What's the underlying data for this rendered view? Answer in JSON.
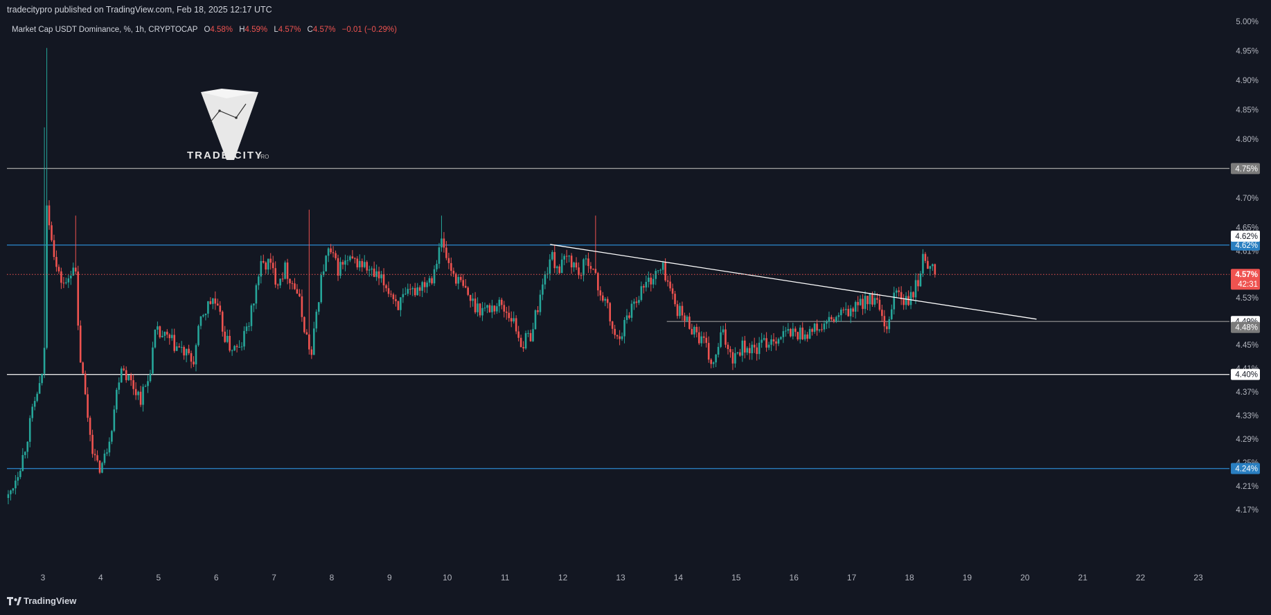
{
  "header": {
    "published_by": "tradecitypro published on TradingView.com, Feb 18, 2025 12:17 UTC"
  },
  "legend": {
    "symbol": "Market Cap USDT Dominance, %, 1h, CRYPTOCAP",
    "o_label": "O",
    "o_value": "4.58%",
    "h_label": "H",
    "h_value": "4.59%",
    "l_label": "L",
    "l_value": "4.57%",
    "c_label": "C",
    "c_value": "4.57%",
    "change": "−0.01 (−0.29%)"
  },
  "watermark": {
    "brand": "TRADE CITY",
    "suffix": "PRO"
  },
  "footer": {
    "brand": "TradingView"
  },
  "colors": {
    "background": "#131722",
    "up": "#26a69a",
    "down": "#ef5350",
    "blue_level": "#2a7fc1",
    "white_level": "#e6e6e6",
    "gray_level": "#9a9a9a",
    "price_line": "#ef5350",
    "text": "#d1d4dc",
    "axis_text": "#b2b5be"
  },
  "chart_data": {
    "type": "candlestick",
    "title": "Market Cap USDT Dominance, %, 1h, CRYPTOCAP",
    "y_unit": "%",
    "ylim": [
      4.14,
      5.0
    ],
    "xlim": [
      2.4,
      23.6
    ],
    "x_ticks": [
      "3",
      "4",
      "5",
      "6",
      "7",
      "8",
      "9",
      "10",
      "11",
      "12",
      "13",
      "14",
      "15",
      "16",
      "17",
      "18",
      "19",
      "20",
      "21",
      "22",
      "23"
    ],
    "y_ticks": [
      "5.00%",
      "4.95%",
      "4.90%",
      "4.85%",
      "4.80%",
      "4.75%",
      "4.70%",
      "4.65%",
      "4.61%",
      "4.57%",
      "4.53%",
      "4.49%",
      "4.45%",
      "4.41%",
      "4.37%",
      "4.33%",
      "4.29%",
      "4.25%",
      "4.21%",
      "4.17%"
    ],
    "levels": [
      {
        "value": 4.75,
        "label": "4.75%",
        "style": "gray"
      },
      {
        "value": 4.62,
        "label": "4.62%",
        "style": "blue"
      },
      {
        "value": 4.4,
        "label": "4.40%",
        "style": "white"
      },
      {
        "value": 4.24,
        "label": "4.24%",
        "style": "blue"
      }
    ],
    "segment_level": {
      "value": 4.49,
      "label": "4.49%",
      "x_start": 13.8
    },
    "extra_tags": [
      {
        "value": 4.635,
        "label": "4.62%",
        "style": "white"
      },
      {
        "value": 4.48,
        "label": "4.48%",
        "style": "gray"
      }
    ],
    "trendline": {
      "x1": 11.78,
      "y1": 4.621,
      "x2": 20.2,
      "y2": 4.494
    },
    "last_price": {
      "value": 4.57,
      "label": "4.57%",
      "countdown": "42:31"
    },
    "anchors": [
      [
        2.4,
        4.19
      ],
      [
        2.65,
        4.26
      ],
      [
        2.9,
        4.37
      ],
      [
        3.02,
        4.4
      ],
      [
        3.05,
        4.69
      ],
      [
        3.12,
        4.66
      ],
      [
        3.25,
        4.57
      ],
      [
        3.4,
        4.55
      ],
      [
        3.55,
        4.6
      ],
      [
        3.62,
        4.45
      ],
      [
        3.8,
        4.31
      ],
      [
        3.93,
        4.24
      ],
      [
        4.05,
        4.25
      ],
      [
        4.2,
        4.32
      ],
      [
        4.35,
        4.42
      ],
      [
        4.5,
        4.39
      ],
      [
        4.7,
        4.36
      ],
      [
        4.82,
        4.39
      ],
      [
        4.95,
        4.47
      ],
      [
        5.15,
        4.46
      ],
      [
        5.4,
        4.44
      ],
      [
        5.6,
        4.42
      ],
      [
        5.75,
        4.5
      ],
      [
        5.95,
        4.53
      ],
      [
        6.2,
        4.45
      ],
      [
        6.4,
        4.44
      ],
      [
        6.6,
        4.5
      ],
      [
        6.75,
        4.58
      ],
      [
        6.9,
        4.59
      ],
      [
        7.05,
        4.56
      ],
      [
        7.2,
        4.58
      ],
      [
        7.4,
        4.54
      ],
      [
        7.55,
        4.47
      ],
      [
        7.65,
        4.43
      ],
      [
        7.75,
        4.52
      ],
      [
        7.85,
        4.58
      ],
      [
        7.95,
        4.61
      ],
      [
        8.1,
        4.58
      ],
      [
        8.25,
        4.59
      ],
      [
        8.5,
        4.59
      ],
      [
        8.7,
        4.57
      ],
      [
        8.95,
        4.55
      ],
      [
        9.15,
        4.52
      ],
      [
        9.3,
        4.53
      ],
      [
        9.5,
        4.55
      ],
      [
        9.75,
        4.57
      ],
      [
        9.88,
        4.63
      ],
      [
        10.05,
        4.58
      ],
      [
        10.25,
        4.55
      ],
      [
        10.45,
        4.52
      ],
      [
        10.65,
        4.51
      ],
      [
        10.9,
        4.52
      ],
      [
        11.1,
        4.5
      ],
      [
        11.3,
        4.45
      ],
      [
        11.45,
        4.47
      ],
      [
        11.6,
        4.53
      ],
      [
        11.78,
        4.6
      ],
      [
        11.95,
        4.58
      ],
      [
        12.1,
        4.6
      ],
      [
        12.3,
        4.57
      ],
      [
        12.45,
        4.6
      ],
      [
        12.6,
        4.55
      ],
      [
        12.75,
        4.52
      ],
      [
        12.9,
        4.46
      ],
      [
        13.05,
        4.48
      ],
      [
        13.2,
        4.52
      ],
      [
        13.4,
        4.55
      ],
      [
        13.6,
        4.57
      ],
      [
        13.75,
        4.58
      ],
      [
        13.9,
        4.53
      ],
      [
        14.05,
        4.5
      ],
      [
        14.25,
        4.48
      ],
      [
        14.45,
        4.45
      ],
      [
        14.6,
        4.41
      ],
      [
        14.75,
        4.47
      ],
      [
        14.95,
        4.43
      ],
      [
        15.1,
        4.45
      ],
      [
        15.3,
        4.44
      ],
      [
        15.6,
        4.46
      ],
      [
        15.9,
        4.47
      ],
      [
        16.2,
        4.47
      ],
      [
        16.5,
        4.48
      ],
      [
        16.8,
        4.5
      ],
      [
        17.05,
        4.51
      ],
      [
        17.25,
        4.53
      ],
      [
        17.45,
        4.52
      ],
      [
        17.6,
        4.46
      ],
      [
        17.75,
        4.55
      ],
      [
        17.9,
        4.52
      ],
      [
        18.05,
        4.53
      ],
      [
        18.15,
        4.56
      ],
      [
        18.25,
        4.6
      ],
      [
        18.35,
        4.59
      ],
      [
        18.45,
        4.57
      ]
    ]
  }
}
